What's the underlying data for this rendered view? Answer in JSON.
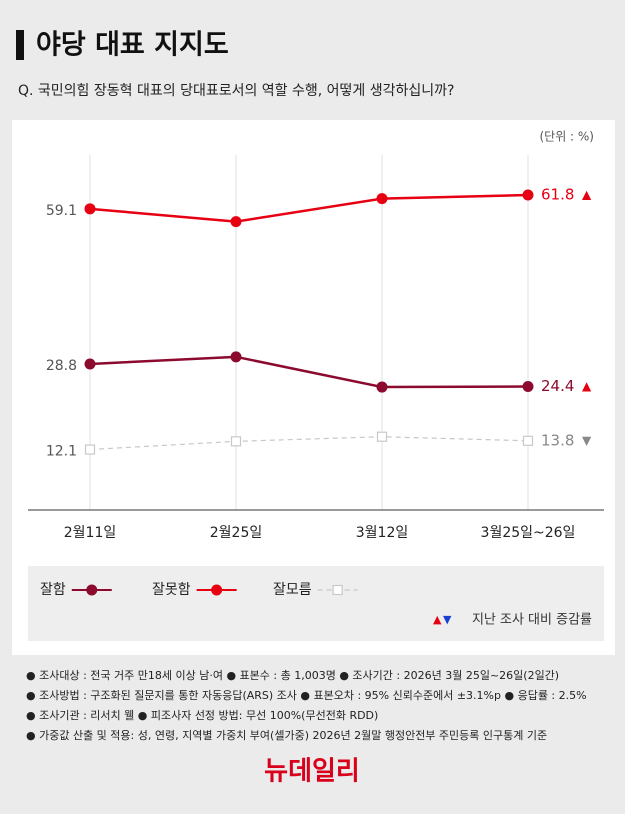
{
  "title": "야당 대표 지지도",
  "question": "Q. 국민의힘 장동혁 대표의 당대표로서의 역할 수행, 어떻게 생각하십니까?",
  "chart_data": {
    "type": "line",
    "unit": "(단위 : %)",
    "categories": [
      "2월11일",
      "2월25일",
      "3월12일",
      "3월25일~26일"
    ],
    "ylim": [
      0,
      70
    ],
    "series": [
      {
        "name": "잘함",
        "color": "#8c0a2e",
        "marker": "circle",
        "dashed": false,
        "values": [
          28.8,
          30.2,
          24.3,
          24.4
        ],
        "change": "▲",
        "change_color": "#e60012"
      },
      {
        "name": "잘못함",
        "color": "#e60012",
        "marker": "circle",
        "dashed": false,
        "values": [
          59.1,
          56.6,
          61.1,
          61.8
        ],
        "change": "▲",
        "change_color": "#e60012"
      },
      {
        "name": "잘모름",
        "color": "#c8c8c8",
        "marker": "square",
        "dashed": true,
        "values": [
          12.1,
          13.7,
          14.6,
          13.8
        ],
        "change": "▼",
        "change_color": "#888888"
      }
    ],
    "legend_note": {
      "up": "▲",
      "down": "▼",
      "text": "지난 조사 대비 증감률"
    }
  },
  "footnotes": [
    "● 조사대상 : 전국 거주 만18세 이상 남·여  ● 표본수 : 총 1,003명  ● 조사기간 : 2026년 3월 25일~26일(2일간)",
    "● 조사방법 : 구조화된 질문지를 통한 자동응답(ARS) 조사  ● 표본오차 : 95% 신뢰수준에서 ±3.1%p  ● 응답률 : 2.5%",
    "● 조사기관 : 리서치 웰  ● 피조사자 선정 방법: 무선 100%(무선전화 RDD)",
    "● 가중값 산출 및 적용: 성, 연령, 지역별 가중치 부여(셀가중) 2026년 2월말 행정안전부 주민등록 인구통계 기준"
  ],
  "logo": "뉴데일리"
}
